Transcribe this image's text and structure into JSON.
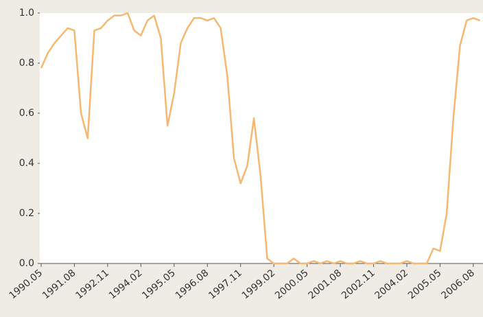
{
  "chart_data": {
    "type": "line",
    "categories": [
      "1990.05",
      null,
      null,
      null,
      null,
      "1991.08",
      null,
      null,
      null,
      null,
      "1992.11",
      null,
      null,
      null,
      null,
      "1994.02",
      null,
      null,
      null,
      null,
      "1995.05",
      null,
      null,
      null,
      null,
      "1996.08",
      null,
      null,
      null,
      null,
      "1997.11",
      null,
      null,
      null,
      null,
      "1999.02",
      null,
      null,
      null,
      null,
      "2000.05",
      null,
      null,
      null,
      null,
      "2001.08",
      null,
      null,
      null,
      null,
      "2002.11",
      null,
      null,
      null,
      null,
      "2004.02",
      null,
      null,
      null,
      null,
      "2005.05",
      null,
      null,
      null,
      null,
      "2006.08",
      null
    ],
    "series": [
      {
        "color": "#f5b870",
        "values": [
          0.78,
          0.84,
          0.88,
          0.91,
          0.94,
          0.93,
          0.6,
          0.5,
          0.93,
          0.94,
          0.97,
          0.99,
          0.99,
          1.0,
          0.93,
          0.91,
          0.97,
          0.99,
          0.9,
          0.55,
          0.68,
          0.88,
          0.94,
          0.98,
          0.98,
          0.97,
          0.98,
          0.94,
          0.75,
          0.42,
          0.32,
          0.39,
          0.58,
          0.35,
          0.02,
          0.0,
          0.0,
          0.0,
          0.02,
          0.0,
          0.0,
          0.01,
          0.0,
          0.01,
          0.0,
          0.01,
          0.0,
          0.0,
          0.01,
          0.0,
          0.0,
          0.01,
          0.0,
          0.0,
          0.0,
          0.01,
          0.0,
          0.0,
          0.0,
          0.06,
          0.05,
          0.2,
          0.58,
          0.87,
          0.97,
          0.98,
          0.97
        ]
      }
    ],
    "ylim": [
      0,
      1
    ],
    "yticks": [
      {
        "value": 0,
        "label": "0.0"
      },
      0.2,
      0.4,
      0.6,
      0.8,
      {
        "value": 1,
        "label": "1.0"
      }
    ],
    "grid": false
  }
}
